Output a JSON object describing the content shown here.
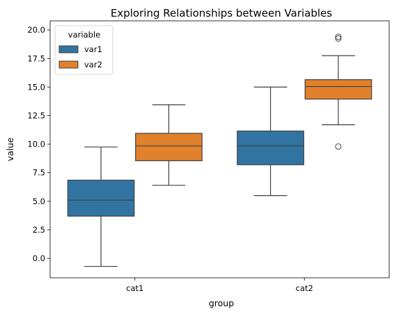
{
  "chart_data": {
    "type": "box",
    "title": "Exploring Relationships between Variables",
    "xlabel": "group",
    "ylabel": "value",
    "categories": [
      "cat1",
      "cat2"
    ],
    "ylim": [
      -1.7,
      20.8
    ],
    "yticks": [
      0.0,
      2.5,
      5.0,
      7.5,
      10.0,
      12.5,
      15.0,
      17.5,
      20.0
    ],
    "ytick_labels": [
      "0.0",
      "2.5",
      "5.0",
      "7.5",
      "10.0",
      "12.5",
      "15.0",
      "17.5",
      "20.0"
    ],
    "grid": false,
    "legend": {
      "title": "variable",
      "position": "top-left"
    },
    "series": [
      {
        "name": "var1",
        "color": "#3274a1",
        "boxes": [
          {
            "category": "cat1",
            "whisker_low": -0.7,
            "q1": 3.7,
            "median": 5.1,
            "q3": 6.85,
            "whisker_high": 9.75,
            "outliers": []
          },
          {
            "category": "cat2",
            "whisker_low": 5.5,
            "q1": 8.2,
            "median": 9.85,
            "q3": 11.15,
            "whisker_high": 15.0,
            "outliers": []
          }
        ]
      },
      {
        "name": "var2",
        "color": "#e1812c",
        "boxes": [
          {
            "category": "cat1",
            "whisker_low": 6.4,
            "q1": 8.55,
            "median": 9.85,
            "q3": 10.95,
            "whisker_high": 13.45,
            "outliers": []
          },
          {
            "category": "cat2",
            "whisker_low": 11.7,
            "q1": 13.95,
            "median": 15.05,
            "q3": 15.65,
            "whisker_high": 17.75,
            "outliers": [
              9.8,
              19.25,
              19.4
            ]
          }
        ]
      }
    ]
  }
}
